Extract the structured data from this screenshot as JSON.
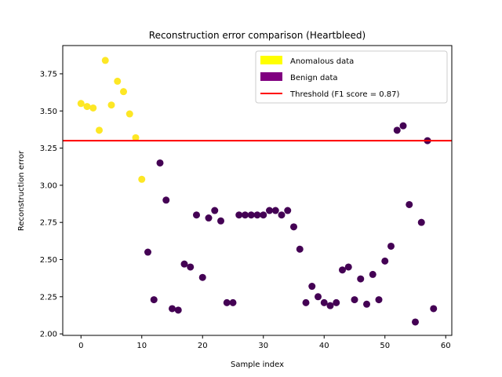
{
  "chart_data": {
    "type": "scatter",
    "title": "Reconstruction error comparison (Heartbleed)",
    "xlabel": "Sample index",
    "ylabel": "Reconstruction error",
    "xlim": [
      -3,
      61
    ],
    "ylim": [
      1.99,
      3.94
    ],
    "xticks": [
      0,
      10,
      20,
      30,
      40,
      50,
      60
    ],
    "yticks": [
      2.0,
      2.25,
      2.5,
      2.75,
      3.0,
      3.25,
      3.5,
      3.75
    ],
    "yticks_labels": [
      "2.00",
      "2.25",
      "2.50",
      "2.75",
      "3.00",
      "3.25",
      "3.50",
      "3.75"
    ],
    "grid": false,
    "legend_position": "top-right",
    "legend": [
      {
        "label": "Anomalous data",
        "kind": "patch",
        "color": "#ffff00"
      },
      {
        "label": "Benign data",
        "kind": "patch",
        "color": "#800080"
      },
      {
        "label": "Threshold (F1 score = 0.87)",
        "kind": "line",
        "color": "#ff0000"
      }
    ],
    "threshold": 3.3,
    "series": [
      {
        "name": "Anomalous data",
        "color": "#fde725",
        "points": [
          [
            0,
            3.55
          ],
          [
            1,
            3.53
          ],
          [
            2,
            3.52
          ],
          [
            3,
            3.37
          ],
          [
            4,
            3.84
          ],
          [
            5,
            3.54
          ],
          [
            6,
            3.7
          ],
          [
            7,
            3.63
          ],
          [
            8,
            3.48
          ],
          [
            9,
            3.32
          ],
          [
            10,
            3.04
          ]
        ]
      },
      {
        "name": "Benign data",
        "color": "#440154",
        "points": [
          [
            11,
            2.55
          ],
          [
            12,
            2.23
          ],
          [
            13,
            3.15
          ],
          [
            14,
            2.9
          ],
          [
            15,
            2.17
          ],
          [
            16,
            2.16
          ],
          [
            17,
            2.47
          ],
          [
            18,
            2.45
          ],
          [
            19,
            2.8
          ],
          [
            20,
            2.38
          ],
          [
            21,
            2.78
          ],
          [
            22,
            2.83
          ],
          [
            23,
            2.76
          ],
          [
            24,
            2.21
          ],
          [
            25,
            2.21
          ],
          [
            26,
            2.8
          ],
          [
            27,
            2.8
          ],
          [
            28,
            2.8
          ],
          [
            29,
            2.8
          ],
          [
            30,
            2.8
          ],
          [
            31,
            2.83
          ],
          [
            32,
            2.83
          ],
          [
            33,
            2.8
          ],
          [
            34,
            2.83
          ],
          [
            35,
            2.72
          ],
          [
            36,
            2.57
          ],
          [
            37,
            2.21
          ],
          [
            38,
            2.32
          ],
          [
            39,
            2.25
          ],
          [
            40,
            2.21
          ],
          [
            41,
            2.19
          ],
          [
            42,
            2.21
          ],
          [
            43,
            2.43
          ],
          [
            44,
            2.45
          ],
          [
            45,
            2.23
          ],
          [
            46,
            2.37
          ],
          [
            47,
            2.2
          ],
          [
            48,
            2.4
          ],
          [
            49,
            2.23
          ],
          [
            50,
            2.49
          ],
          [
            51,
            2.59
          ],
          [
            52,
            3.37
          ],
          [
            53,
            3.4
          ],
          [
            54,
            2.87
          ],
          [
            55,
            2.08
          ],
          [
            56,
            2.75
          ],
          [
            57,
            3.3
          ],
          [
            58,
            2.17
          ]
        ]
      }
    ]
  }
}
